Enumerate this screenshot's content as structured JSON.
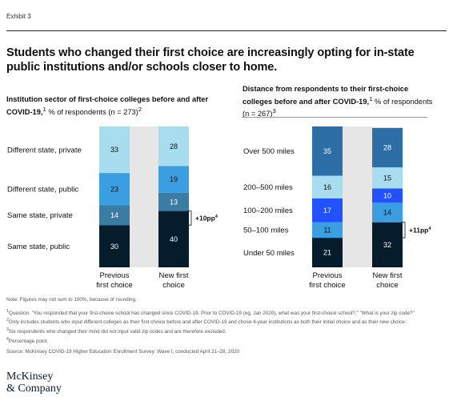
{
  "exhibit_label": "Exhibit 3",
  "headline": "Students who changed their first choice are increasingly opting for in-state public institutions and/or schools closer to home.",
  "chart_data": [
    {
      "type": "bar",
      "stacked": true,
      "title_main": "Institution sector of first-choice colleges before and after COVID-19,",
      "title_sup": "1",
      "title_rest": " % of respondents (n = 273)",
      "title_sup2": "2",
      "categories": [
        "Previous first choice",
        "New first choice"
      ],
      "category_lines": [
        [
          "Previous",
          "first choice"
        ],
        [
          "New first",
          "choice"
        ]
      ],
      "series": [
        {
          "name": "Same state, public",
          "values": [
            30,
            40
          ],
          "color": "#051c2c",
          "text_color": "#ffffff"
        },
        {
          "name": "Same state, private",
          "values": [
            14,
            13
          ],
          "color": "#3a7ca2",
          "text_color": "#ffffff"
        },
        {
          "name": "Different state, public",
          "values": [
            23,
            19
          ],
          "color": "#3a9ee0",
          "text_color": "#111111"
        },
        {
          "name": "Different state, private",
          "values": [
            33,
            28
          ],
          "color": "#a8dcef",
          "text_color": "#111111"
        }
      ],
      "annotation": "+10pp",
      "annotation_sup": "4"
    },
    {
      "type": "bar",
      "stacked": true,
      "title_main": "Distance from respondents to their first-choice colleges before and after COVID-19,",
      "title_sup": "1",
      "title_rest": " % of respondents (n = 267)",
      "title_sup2": "3",
      "categories": [
        "Previous first choice",
        "New first choice"
      ],
      "category_lines": [
        [
          "Previous",
          "first choice"
        ],
        [
          "New first",
          "choice"
        ]
      ],
      "series": [
        {
          "name": "Under 50 miles",
          "values": [
            21,
            32
          ],
          "color": "#051c2c",
          "text_color": "#ffffff"
        },
        {
          "name": "50–100 miles",
          "values": [
            11,
            14
          ],
          "color": "#3a9ee0",
          "text_color": "#111111"
        },
        {
          "name": "100–200 miles",
          "values": [
            17,
            10
          ],
          "color": "#2251ff",
          "text_color": "#ffffff"
        },
        {
          "name": "200–500 miles",
          "values": [
            16,
            15
          ],
          "color": "#a8dcef",
          "text_color": "#111111"
        },
        {
          "name": "Over 500 miles",
          "values": [
            35,
            28
          ],
          "color": "#2e6ea6",
          "text_color": "#ffffff"
        }
      ],
      "annotation": "+11pp",
      "annotation_sup": "4"
    }
  ],
  "footnotes": {
    "note": "Note: Figures may not sum to 100%, because of rounding.",
    "fn1_sup": "1",
    "fn1": "Question: \"You responded that your first-choice school has changed since COVID-19. Prior to COVID-19 (eg, Jan 2020), what was your first-choice school?,\" \"What is your zip code?\"",
    "fn2_sup": "2",
    "fn2": "Only includes students who input different colleges as their first choice before and after COVID-19 and chose 4-year institutions as both their initial choice and as their new choice.",
    "fn3_sup": "3",
    "fn3": "Six respondents who changed their mind did not input valid zip codes and are therefore excluded.",
    "fn4_sup": "4",
    "fn4": "Percentage point.",
    "source": "Source: McKinsey COVID-19 Higher Education Enrollment Survey: Wave I, conducted April 21–28, 2020"
  },
  "logo": {
    "line1": "McKinsey",
    "line2": "& Company"
  }
}
